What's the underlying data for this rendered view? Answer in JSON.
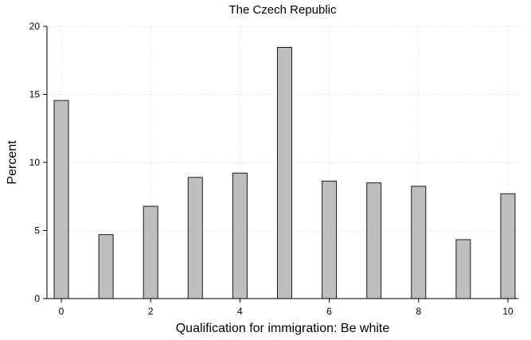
{
  "chart_data": {
    "type": "bar",
    "title": "The Czech Republic",
    "xlabel": "Qualification for immigration: Be white",
    "ylabel": "Percent",
    "x": [
      0,
      1,
      2,
      3,
      4,
      5,
      6,
      7,
      8,
      9,
      10
    ],
    "values": [
      14.55,
      4.7,
      6.78,
      8.9,
      9.22,
      18.45,
      8.63,
      8.5,
      8.25,
      4.33,
      7.7
    ],
    "xlim": [
      0,
      10
    ],
    "ylim": [
      0,
      20
    ],
    "xticks": [
      0,
      2,
      4,
      6,
      8,
      10
    ],
    "yticks": [
      0,
      5,
      10,
      15,
      20
    ],
    "grid": true,
    "bar_color": "#bebebe"
  }
}
